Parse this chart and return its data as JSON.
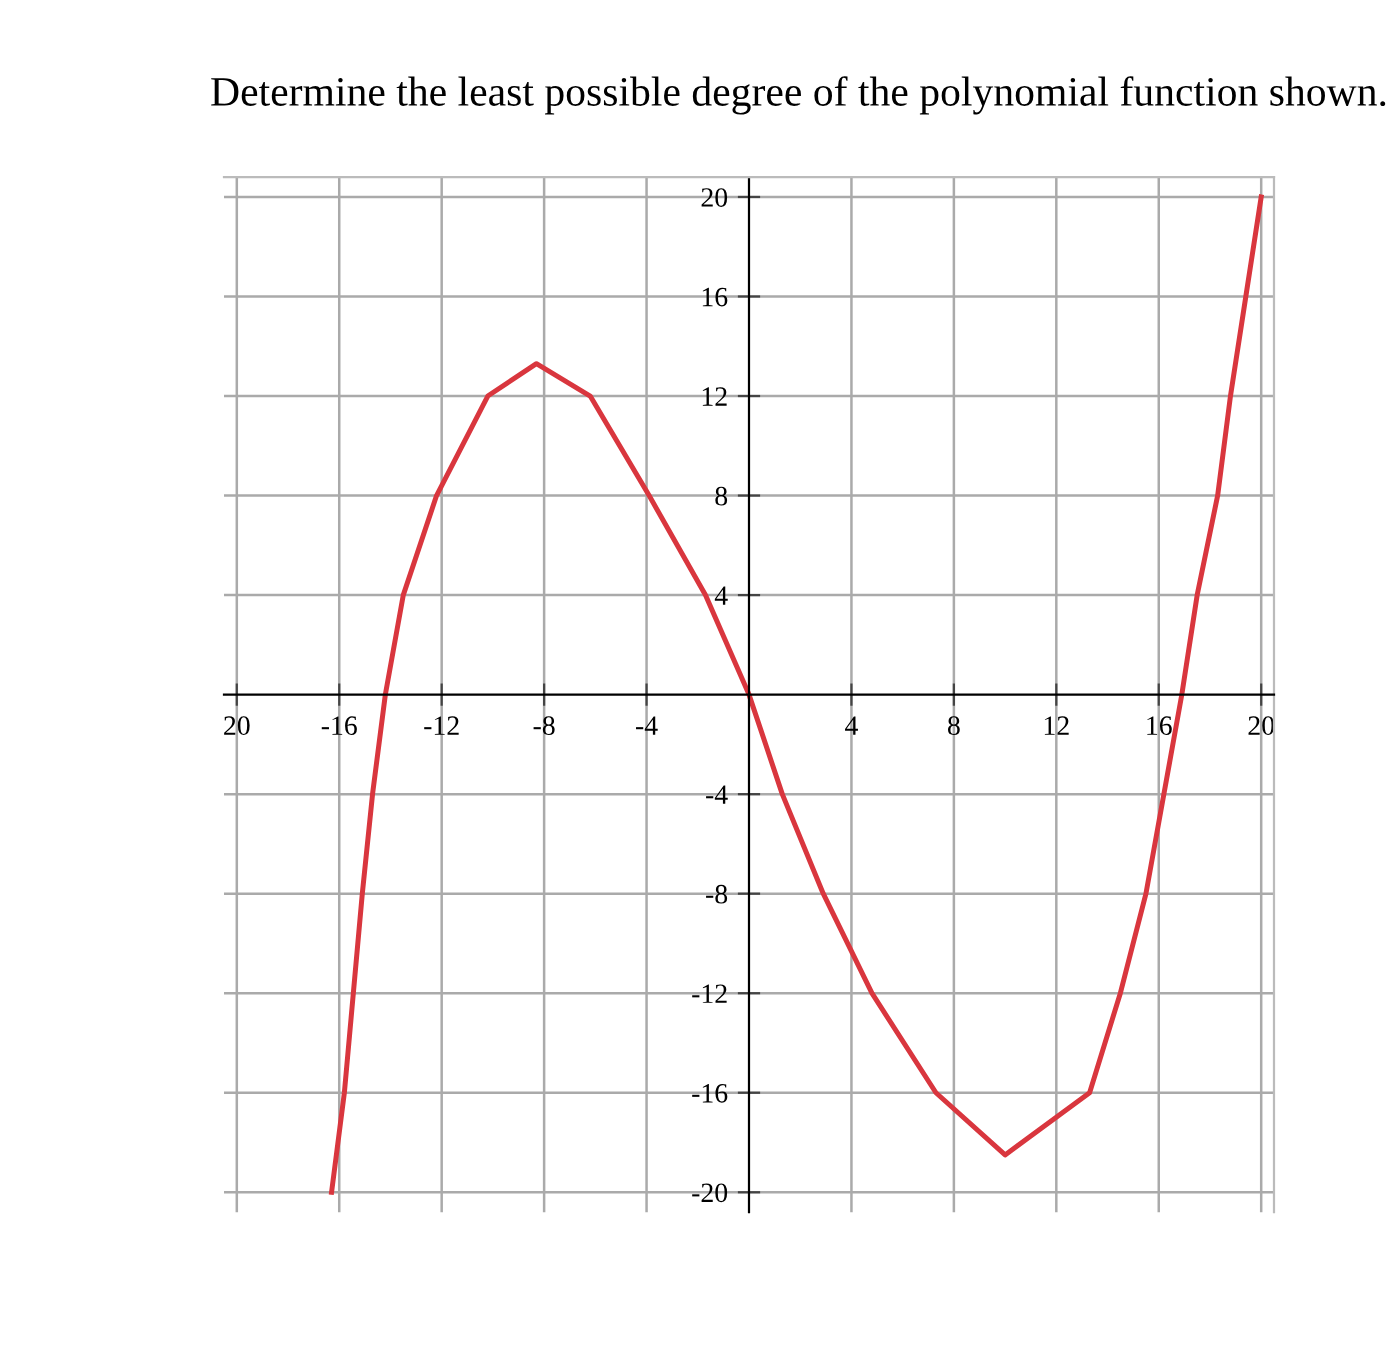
{
  "chart_data": {
    "type": "line",
    "title": "Determine the least possible degree of the polynomial function shown.",
    "series": [
      {
        "color": "#d9363e",
        "x": [
          -16.3,
          -15.8,
          -15.1,
          -14.7,
          -14.2,
          -13.5,
          -12.2,
          -10.2,
          -8.3,
          -6.2,
          -3.9,
          -1.7,
          0,
          1.3,
          2.9,
          4.8,
          7.3,
          10,
          13.3,
          14.5,
          15.5,
          16.2,
          16.9,
          17.5,
          18.3,
          18.8,
          19.4,
          20
        ],
        "values": [
          -20,
          -16,
          -8,
          -4,
          0,
          4,
          8,
          12,
          13.3,
          12,
          8,
          4,
          0,
          -4,
          -8,
          -12,
          -16,
          -18.5,
          -16,
          -12,
          -8,
          -4,
          0,
          4,
          8,
          12,
          16,
          20
        ]
      }
    ],
    "xlim": [
      -20.5,
      20.5
    ],
    "ylim": [
      -20.8,
      20.8
    ],
    "xticks": [
      {
        "value": -20,
        "label": "20"
      },
      -16,
      -12,
      -8,
      -4,
      4,
      8,
      12,
      16,
      20
    ],
    "yticks": [
      -20,
      -16,
      -12,
      -8,
      -4,
      4,
      8,
      12,
      16,
      20
    ],
    "grid": true,
    "marker": "none",
    "line_style": "solid",
    "legend": false
  }
}
